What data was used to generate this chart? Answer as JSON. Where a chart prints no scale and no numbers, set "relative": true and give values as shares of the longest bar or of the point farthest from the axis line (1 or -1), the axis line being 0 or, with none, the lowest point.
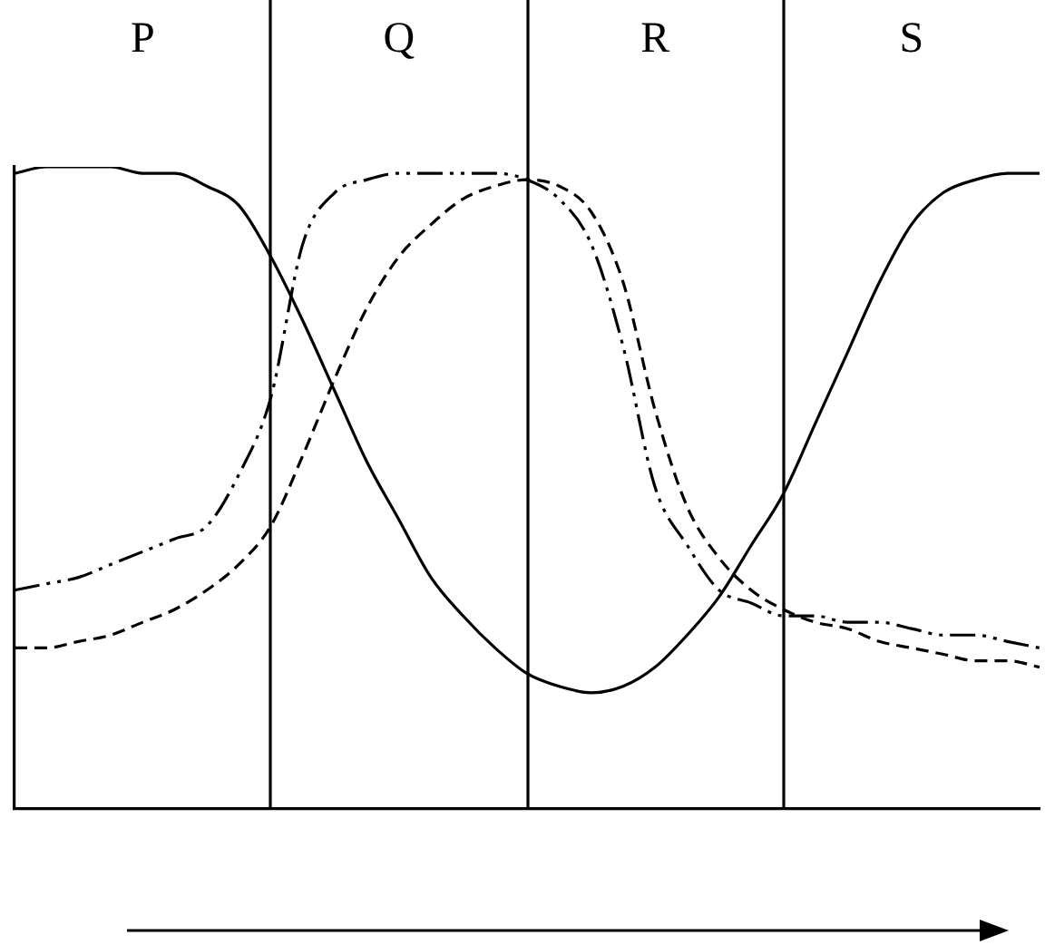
{
  "chart_data": {
    "type": "line",
    "relative": true,
    "grid": "x",
    "legend": false,
    "marker": "none",
    "categories": [
      null,
      null,
      null,
      null,
      null,
      null,
      null,
      null,
      null,
      null,
      null,
      null,
      null,
      null,
      null,
      null,
      null,
      null,
      null,
      null,
      null,
      null,
      null,
      null,
      null,
      null,
      null,
      null,
      null,
      null,
      null,
      null,
      null
    ],
    "annotations": [
      "P",
      "Q",
      "R",
      "S"
    ],
    "series": [
      {
        "color": "#000000",
        "line_style": "solid",
        "values": [
          0.99,
          1.0,
          1.0,
          1.0,
          0.99,
          0.99,
          0.97,
          0.94,
          0.86,
          0.76,
          0.65,
          0.54,
          0.45,
          0.36,
          0.3,
          0.25,
          0.21,
          0.19,
          0.18,
          0.19,
          0.22,
          0.27,
          0.33,
          0.41,
          0.49,
          0.6,
          0.71,
          0.82,
          0.91,
          0.96,
          0.98,
          0.99,
          0.99
        ]
      },
      {
        "color": "#000000",
        "line_style": "dotted",
        "values": [
          0.34,
          0.35,
          0.36,
          0.38,
          0.4,
          0.42,
          0.44,
          0.52,
          0.64,
          0.88,
          0.96,
          0.98,
          0.99,
          0.99,
          0.99,
          0.99,
          0.98,
          0.95,
          0.88,
          0.72,
          0.5,
          0.41,
          0.34,
          0.32,
          0.3,
          0.3,
          0.29,
          0.29,
          0.28,
          0.27,
          0.27,
          0.26,
          0.25
        ]
      },
      {
        "color": "#000000",
        "line_style": "dashed",
        "values": [
          0.25,
          0.25,
          0.26,
          0.27,
          0.29,
          0.31,
          0.34,
          0.38,
          0.44,
          0.55,
          0.67,
          0.78,
          0.86,
          0.91,
          0.95,
          0.97,
          0.98,
          0.97,
          0.93,
          0.82,
          0.62,
          0.47,
          0.39,
          0.34,
          0.31,
          0.29,
          0.28,
          0.26,
          0.25,
          0.24,
          0.23,
          0.23,
          0.22
        ]
      }
    ]
  }
}
